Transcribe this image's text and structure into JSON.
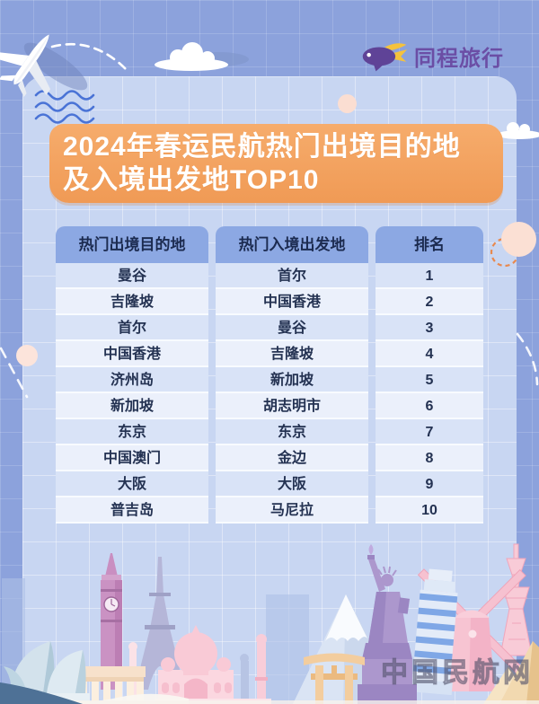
{
  "brand": {
    "name": "同程旅行",
    "icon": "whale-blimp-icon"
  },
  "title": {
    "line1": "2024年春运民航热门出境目的地",
    "line2": "及入境出发地TOP10"
  },
  "table": {
    "headers": [
      "热门出境目的地",
      "热门入境出发地",
      "排名"
    ],
    "rows": [
      [
        "曼谷",
        "首尔",
        "1"
      ],
      [
        "吉隆坡",
        "中国香港",
        "2"
      ],
      [
        "首尔",
        "曼谷",
        "3"
      ],
      [
        "中国香港",
        "吉隆坡",
        "4"
      ],
      [
        "济州岛",
        "新加坡",
        "5"
      ],
      [
        "新加坡",
        "胡志明市",
        "6"
      ],
      [
        "东京",
        "东京",
        "7"
      ],
      [
        "中国澳门",
        "金边",
        "8"
      ],
      [
        "大阪",
        "大阪",
        "9"
      ],
      [
        "普吉岛",
        "马尼拉",
        "10"
      ]
    ]
  },
  "watermark": "中国民航网",
  "chart_data": {
    "type": "table",
    "title": "2024年春运民航热门出境目的地及入境出发地TOP10",
    "source_brand": "同程旅行",
    "columns": [
      "热门出境目的地",
      "热门入境出发地",
      "排名"
    ],
    "rows": [
      [
        "曼谷",
        "首尔",
        1
      ],
      [
        "吉隆坡",
        "中国香港",
        2
      ],
      [
        "首尔",
        "曼谷",
        3
      ],
      [
        "中国香港",
        "吉隆坡",
        4
      ],
      [
        "济州岛",
        "新加坡",
        5
      ],
      [
        "新加坡",
        "胡志明市",
        6
      ],
      [
        "东京",
        "东京",
        7
      ],
      [
        "中国澳门",
        "金边",
        8
      ],
      [
        "大阪",
        "大阪",
        9
      ],
      [
        "普吉岛",
        "马尼拉",
        10
      ]
    ]
  },
  "colors": {
    "outer_bg": "#8CA2DC",
    "panel_bg": "#C8D6F2",
    "banner_orange": "#F2A25F",
    "header_blue": "#8CA8E3",
    "row_odd": "#D9E3F7",
    "row_even": "#EBF0FB",
    "brand_purple": "#6B4EA5",
    "brand_yellow": "#F5C23D",
    "wave_blue": "#4A73D6",
    "dashed_circle_orange": "#E8894F"
  },
  "decorations": [
    "airplane",
    "dashed-trail",
    "clouds",
    "wavy-lines",
    "peach-circles",
    "landmark-skyline: sydney-opera-house, big-ben, parthenon, eiffel-tower, taj-mahal, mount-fuji, torii-gate, statue-of-liberty, pisa-tower, windmill, tokyo-tower, pyramids"
  ]
}
